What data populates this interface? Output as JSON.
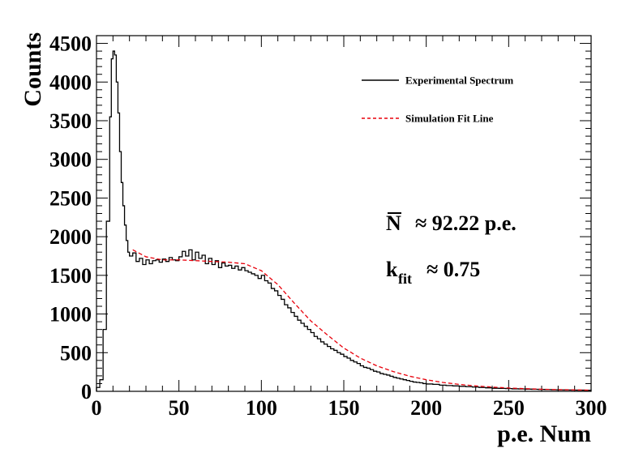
{
  "chart_data": {
    "type": "line",
    "title": "",
    "xlabel": "p.e. Num",
    "ylabel": "Counts",
    "xlim": [
      0,
      300
    ],
    "ylim": [
      0,
      4600
    ],
    "xticks": [
      0,
      50,
      100,
      150,
      200,
      250,
      300
    ],
    "yticks": [
      0,
      500,
      1000,
      1500,
      2000,
      2500,
      3000,
      3500,
      4000,
      4500
    ],
    "grid": false,
    "legend_position": "top-right",
    "annotations": [
      {
        "symbol": "N",
        "text": "≈ 92.22 p.e."
      },
      {
        "symbol": "k",
        "subscript": "fit",
        "text": "≈ 0.75"
      }
    ],
    "series": [
      {
        "name": "Experimental Spectrum",
        "style": "step",
        "color": "#000000",
        "x": [
          0,
          2,
          4,
          6,
          8,
          9,
          10,
          11,
          12,
          13,
          14,
          15,
          16,
          17,
          18,
          19,
          20,
          22,
          24,
          26,
          28,
          30,
          32,
          34,
          36,
          38,
          40,
          42,
          44,
          46,
          48,
          50,
          52,
          54,
          56,
          58,
          60,
          62,
          64,
          66,
          68,
          70,
          72,
          74,
          76,
          78,
          80,
          82,
          84,
          86,
          88,
          90,
          92,
          94,
          96,
          98,
          100,
          102,
          104,
          106,
          108,
          110,
          112,
          114,
          116,
          118,
          120,
          122,
          124,
          126,
          128,
          130,
          132,
          134,
          136,
          138,
          140,
          142,
          144,
          146,
          148,
          150,
          152,
          154,
          156,
          158,
          160,
          162,
          164,
          166,
          168,
          170,
          172,
          174,
          176,
          178,
          180,
          182,
          184,
          186,
          188,
          190,
          192,
          194,
          196,
          198,
          200,
          204,
          208,
          212,
          216,
          220,
          224,
          228,
          232,
          236,
          240,
          244,
          248,
          252,
          256,
          260,
          264,
          268,
          272,
          276,
          280,
          284,
          288,
          292,
          296,
          300
        ],
        "values": [
          50,
          150,
          800,
          2200,
          3550,
          4300,
          4400,
          4350,
          4000,
          3600,
          3100,
          2700,
          2400,
          2150,
          1950,
          1800,
          1750,
          1790,
          1680,
          1720,
          1640,
          1700,
          1650,
          1690,
          1700,
          1670,
          1710,
          1680,
          1730,
          1700,
          1690,
          1740,
          1810,
          1750,
          1830,
          1700,
          1800,
          1720,
          1760,
          1650,
          1720,
          1640,
          1690,
          1600,
          1660,
          1620,
          1630,
          1590,
          1620,
          1570,
          1600,
          1560,
          1540,
          1520,
          1500,
          1460,
          1500,
          1430,
          1400,
          1330,
          1300,
          1240,
          1190,
          1120,
          1080,
          1020,
          970,
          920,
          880,
          840,
          800,
          760,
          710,
          680,
          640,
          610,
          580,
          550,
          530,
          500,
          480,
          450,
          430,
          400,
          380,
          360,
          330,
          310,
          300,
          280,
          260,
          250,
          230,
          220,
          210,
          195,
          180,
          170,
          160,
          150,
          140,
          130,
          120,
          115,
          110,
          100,
          95,
          90,
          80,
          75,
          70,
          65,
          60,
          55,
          50,
          45,
          40,
          38,
          35,
          32,
          30,
          28,
          26,
          24,
          22,
          20,
          18,
          17,
          16,
          15,
          14,
          13
        ]
      },
      {
        "name": "Simulation Fit Line",
        "style": "dashed",
        "color": "#e8000b",
        "x": [
          22,
          30,
          40,
          50,
          60,
          70,
          80,
          90,
          100,
          110,
          120,
          130,
          140,
          150,
          160,
          170,
          180,
          190,
          200,
          210,
          220,
          230,
          240,
          250,
          260,
          270,
          280,
          290,
          300
        ],
        "values": [
          1830,
          1740,
          1700,
          1700,
          1690,
          1680,
          1670,
          1650,
          1560,
          1380,
          1140,
          910,
          730,
          560,
          430,
          330,
          255,
          195,
          150,
          115,
          90,
          70,
          55,
          43,
          34,
          27,
          22,
          18,
          15
        ]
      }
    ]
  }
}
